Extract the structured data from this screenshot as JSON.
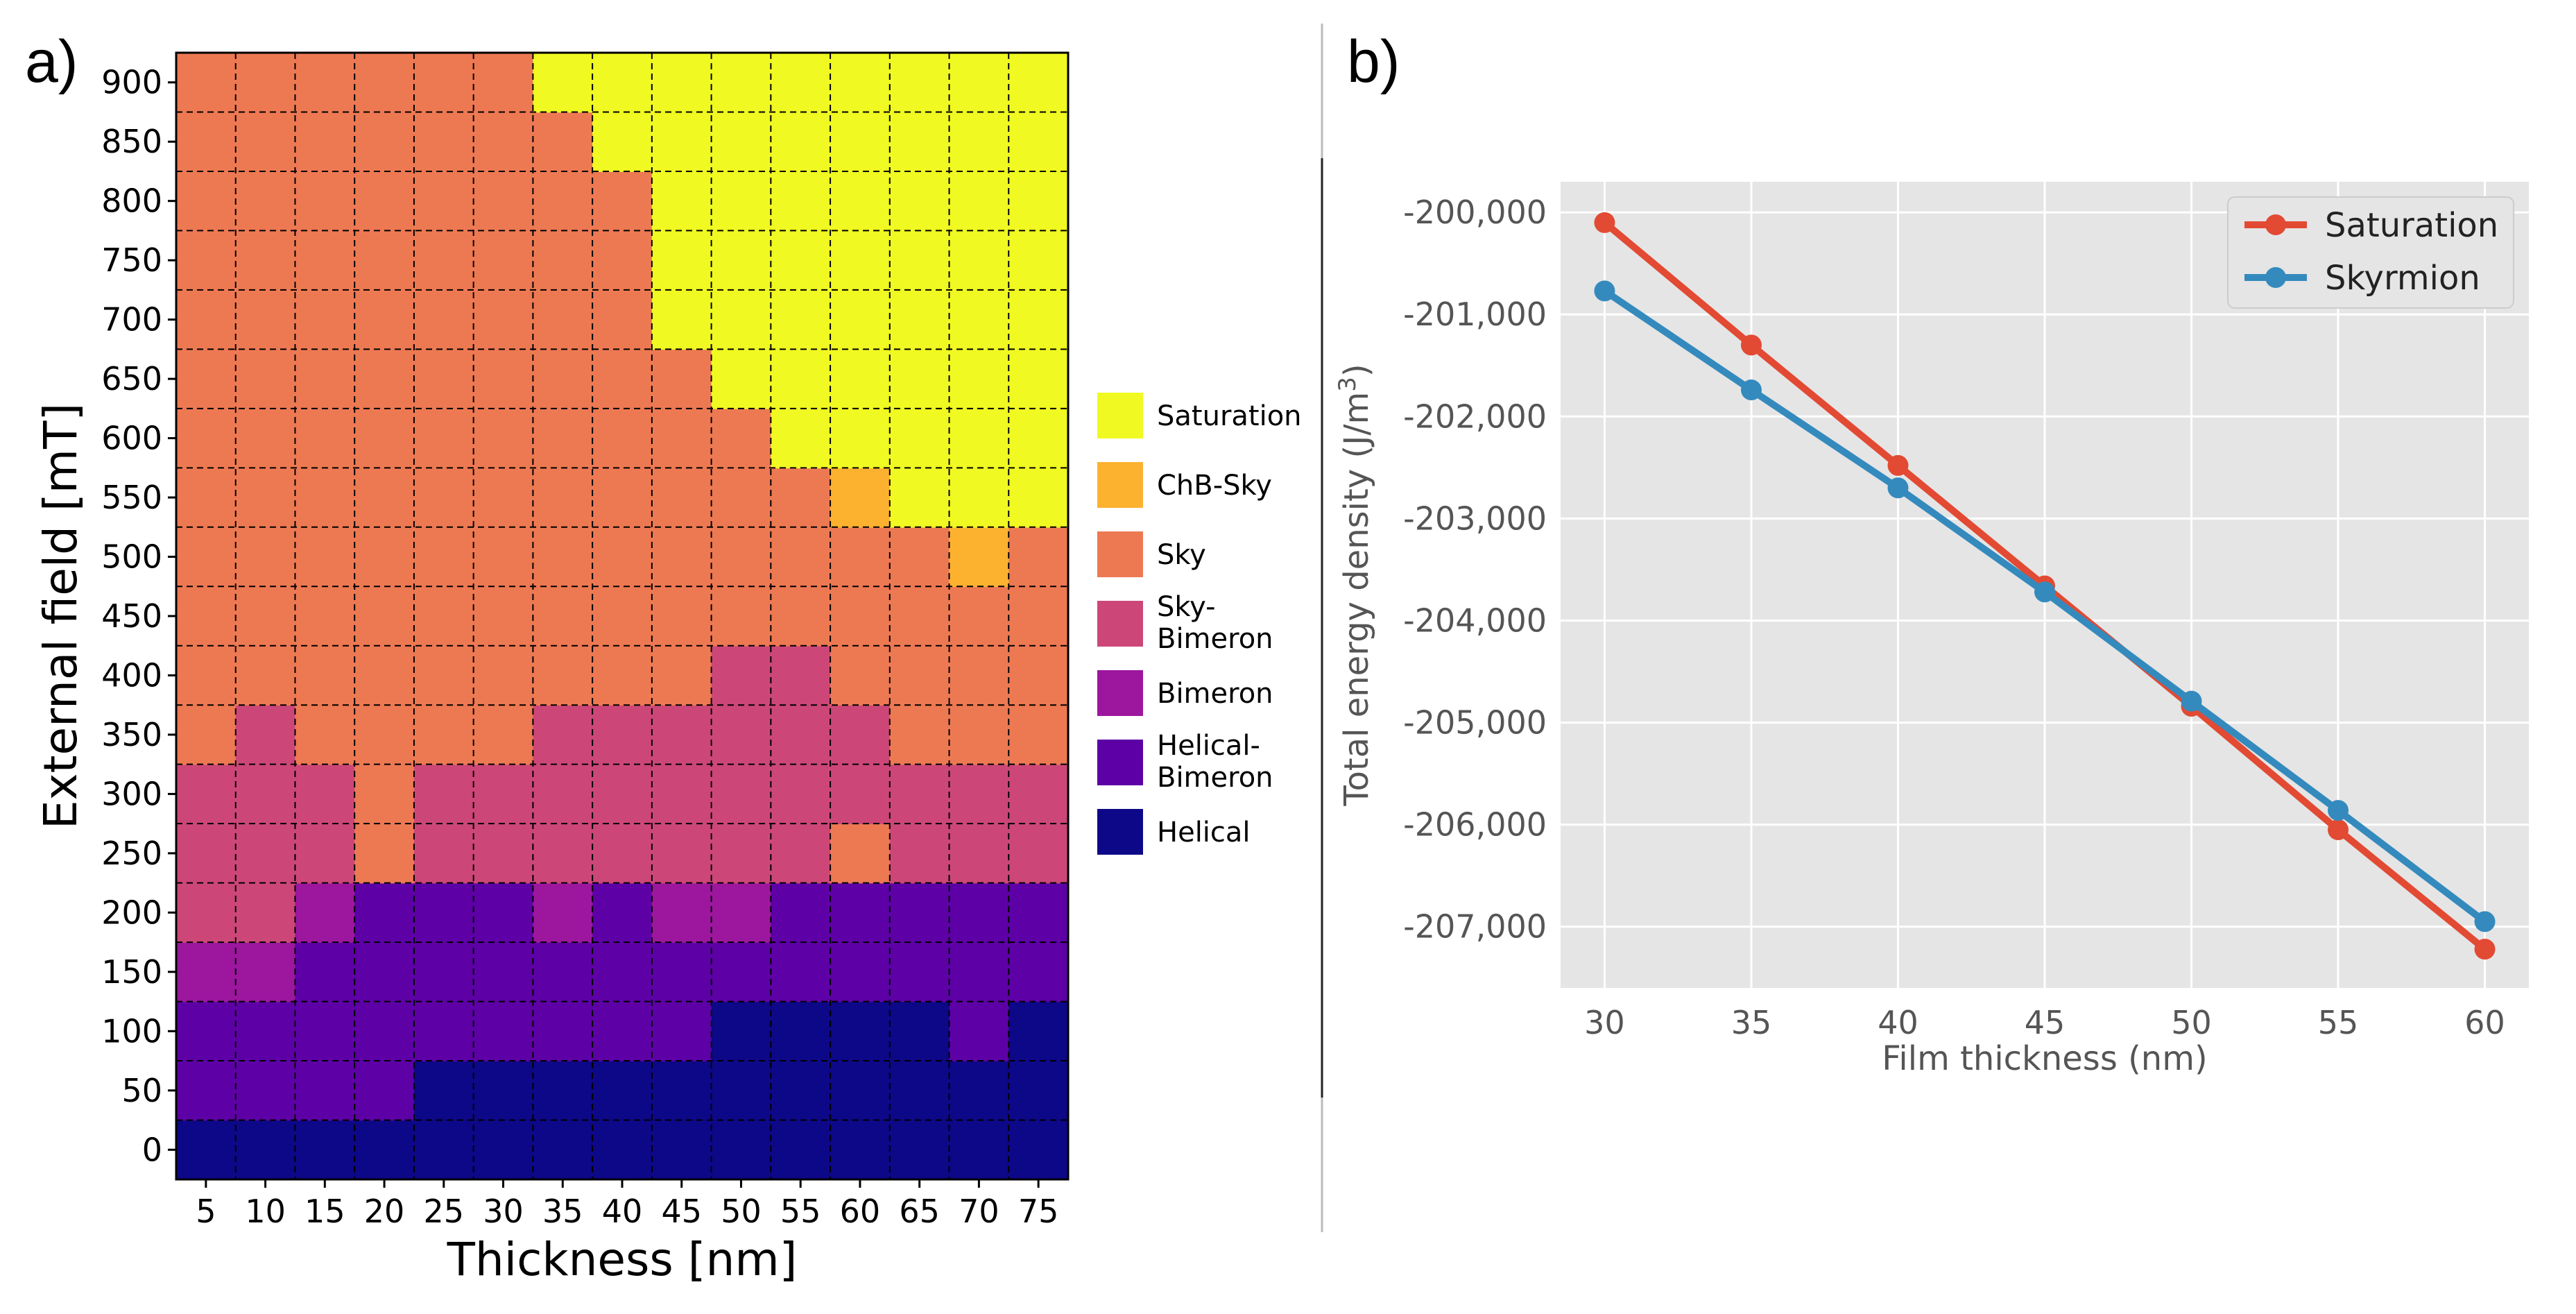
{
  "panels": {
    "a": "a)",
    "b": "b)"
  },
  "colors": {
    "Saturation": "#f0f921",
    "ChB-Sky": "#fdb22f",
    "Sky": "#ed7953",
    "Sky-Bimeron": "#cc4778",
    "Bimeron": "#9c179e",
    "Helical-Bimeron": "#5d01a6",
    "Helical": "#0d0887",
    "saturation_line": "#e24a33",
    "skyrmion_line": "#348abd",
    "plot_bg": "#e5e5e5"
  },
  "chart_data": [
    {
      "type": "heatmap",
      "xlabel": "Thickness [nm]",
      "ylabel": "External field [mT]",
      "x": [
        5,
        10,
        15,
        20,
        25,
        30,
        35,
        40,
        45,
        50,
        55,
        60,
        65,
        70,
        75
      ],
      "y": [
        0,
        50,
        100,
        150,
        200,
        250,
        300,
        350,
        400,
        450,
        500,
        550,
        600,
        650,
        700,
        750,
        800,
        850,
        900
      ],
      "grid": true,
      "legend_position": "right",
      "legend": [
        {
          "key": "Saturation",
          "lines": [
            "Saturation"
          ]
        },
        {
          "key": "ChB-Sky",
          "lines": [
            "ChB-Sky"
          ]
        },
        {
          "key": "Sky",
          "lines": [
            "Sky"
          ]
        },
        {
          "key": "Sky-Bimeron",
          "lines": [
            "Sky-",
            "Bimeron"
          ]
        },
        {
          "key": "Bimeron",
          "lines": [
            "Bimeron"
          ]
        },
        {
          "key": "Helical-Bimeron",
          "lines": [
            "Helical-",
            "Bimeron"
          ]
        },
        {
          "key": "Helical",
          "lines": [
            "Helical"
          ]
        }
      ],
      "codes": [
        "Helical",
        "Helical-Bimeron",
        "Bimeron",
        "Sky-Bimeron",
        "Sky",
        "ChB-Sky",
        "Saturation"
      ],
      "phase": {
        "5": [
          0,
          1,
          1,
          2,
          3,
          3,
          3,
          4,
          4,
          4,
          4,
          4,
          4,
          4,
          4,
          4,
          4,
          4,
          4
        ],
        "10": [
          0,
          1,
          1,
          2,
          3,
          3,
          3,
          3,
          4,
          4,
          4,
          4,
          4,
          4,
          4,
          4,
          4,
          4,
          4
        ],
        "15": [
          0,
          1,
          1,
          1,
          2,
          3,
          3,
          4,
          4,
          4,
          4,
          4,
          4,
          4,
          4,
          4,
          4,
          4,
          4
        ],
        "20": [
          0,
          1,
          1,
          1,
          1,
          4,
          4,
          4,
          4,
          4,
          4,
          4,
          4,
          4,
          4,
          4,
          4,
          4,
          4
        ],
        "25": [
          0,
          0,
          1,
          1,
          1,
          3,
          3,
          4,
          4,
          4,
          4,
          4,
          4,
          4,
          4,
          4,
          4,
          4,
          4
        ],
        "30": [
          0,
          0,
          1,
          1,
          1,
          3,
          3,
          4,
          4,
          4,
          4,
          4,
          4,
          4,
          4,
          4,
          4,
          4,
          4
        ],
        "35": [
          0,
          0,
          1,
          1,
          2,
          3,
          3,
          3,
          4,
          4,
          4,
          4,
          4,
          4,
          4,
          4,
          4,
          4,
          6
        ],
        "40": [
          0,
          0,
          1,
          1,
          1,
          3,
          3,
          3,
          4,
          4,
          4,
          4,
          4,
          4,
          4,
          4,
          4,
          6,
          6
        ],
        "45": [
          0,
          0,
          1,
          1,
          2,
          3,
          3,
          3,
          4,
          4,
          4,
          4,
          4,
          4,
          6,
          6,
          6,
          6,
          6
        ],
        "50": [
          0,
          0,
          0,
          1,
          2,
          3,
          3,
          3,
          3,
          4,
          4,
          4,
          4,
          6,
          6,
          6,
          6,
          6,
          6
        ],
        "55": [
          0,
          0,
          0,
          1,
          1,
          3,
          3,
          3,
          3,
          4,
          4,
          4,
          6,
          6,
          6,
          6,
          6,
          6,
          6
        ],
        "60": [
          0,
          0,
          0,
          1,
          1,
          4,
          3,
          3,
          4,
          4,
          4,
          5,
          6,
          6,
          6,
          6,
          6,
          6,
          6
        ],
        "65": [
          0,
          0,
          0,
          1,
          1,
          3,
          3,
          4,
          4,
          4,
          4,
          6,
          6,
          6,
          6,
          6,
          6,
          6,
          6
        ],
        "70": [
          0,
          0,
          1,
          1,
          1,
          3,
          3,
          4,
          4,
          4,
          5,
          6,
          6,
          6,
          6,
          6,
          6,
          6,
          6
        ],
        "75": [
          0,
          0,
          0,
          1,
          1,
          3,
          3,
          4,
          4,
          4,
          4,
          6,
          6,
          6,
          6,
          6,
          6,
          6,
          6
        ]
      }
    },
    {
      "type": "line",
      "xlabel": "Film thickness (nm)",
      "ylabel_parts": [
        "Total energy density (J/m",
        "3",
        ")"
      ],
      "x": [
        30,
        35,
        40,
        45,
        50,
        55,
        60
      ],
      "xticks": [
        "30",
        "35",
        "40",
        "45",
        "50",
        "55",
        "60"
      ],
      "yticks": [
        -200000,
        -201000,
        -202000,
        -203000,
        -204000,
        -205000,
        -206000,
        -207000
      ],
      "ytick_labels": [
        "-200,000",
        "-201,000",
        "-202,000",
        "-203,000",
        "-204,000",
        "-205,000",
        "-206,000",
        "-207,000"
      ],
      "xlim": [
        28.5,
        61.5
      ],
      "ylim": [
        -207600,
        -199700
      ],
      "grid": true,
      "legend_position": "top-right",
      "series": [
        {
          "name": "Saturation",
          "color_key": "saturation_line",
          "values": [
            -200100,
            -201300,
            -202480,
            -203660,
            -204840,
            -206050,
            -207220
          ]
        },
        {
          "name": "Skyrmion",
          "color_key": "skyrmion_line",
          "values": [
            -200770,
            -201740,
            -202700,
            -203720,
            -204790,
            -205860,
            -206950
          ]
        }
      ]
    }
  ]
}
